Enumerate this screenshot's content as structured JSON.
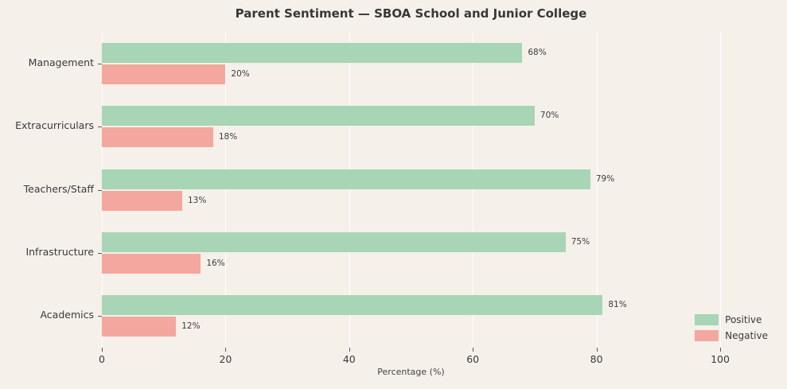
{
  "chart_data": {
    "type": "bar",
    "orientation": "horizontal",
    "title": "Parent Sentiment — SBOA School and Junior College",
    "xlabel": "Percentage (%)",
    "ylabel": "",
    "xlim": [
      0,
      100
    ],
    "xticks": [
      0,
      20,
      40,
      60,
      80,
      100
    ],
    "grid": true,
    "legend_position": "lower right",
    "categories": [
      "Management",
      "Extracurriculars",
      "Teachers/Staff",
      "Infrastructure",
      "Academics"
    ],
    "categories_order_note": "top to bottom",
    "series": [
      {
        "name": "Positive",
        "color": "#a8d5b5",
        "values": [
          68,
          70,
          79,
          75,
          81
        ]
      },
      {
        "name": "Negative",
        "color": "#f4a79f",
        "values": [
          20,
          18,
          13,
          16,
          12
        ]
      }
    ],
    "value_label_format": "{v}%"
  },
  "colors": {
    "background": "#f5f0ea",
    "gridline": "#ffffff",
    "title_text": "#383838",
    "tick_text": "#3a3a3a"
  }
}
